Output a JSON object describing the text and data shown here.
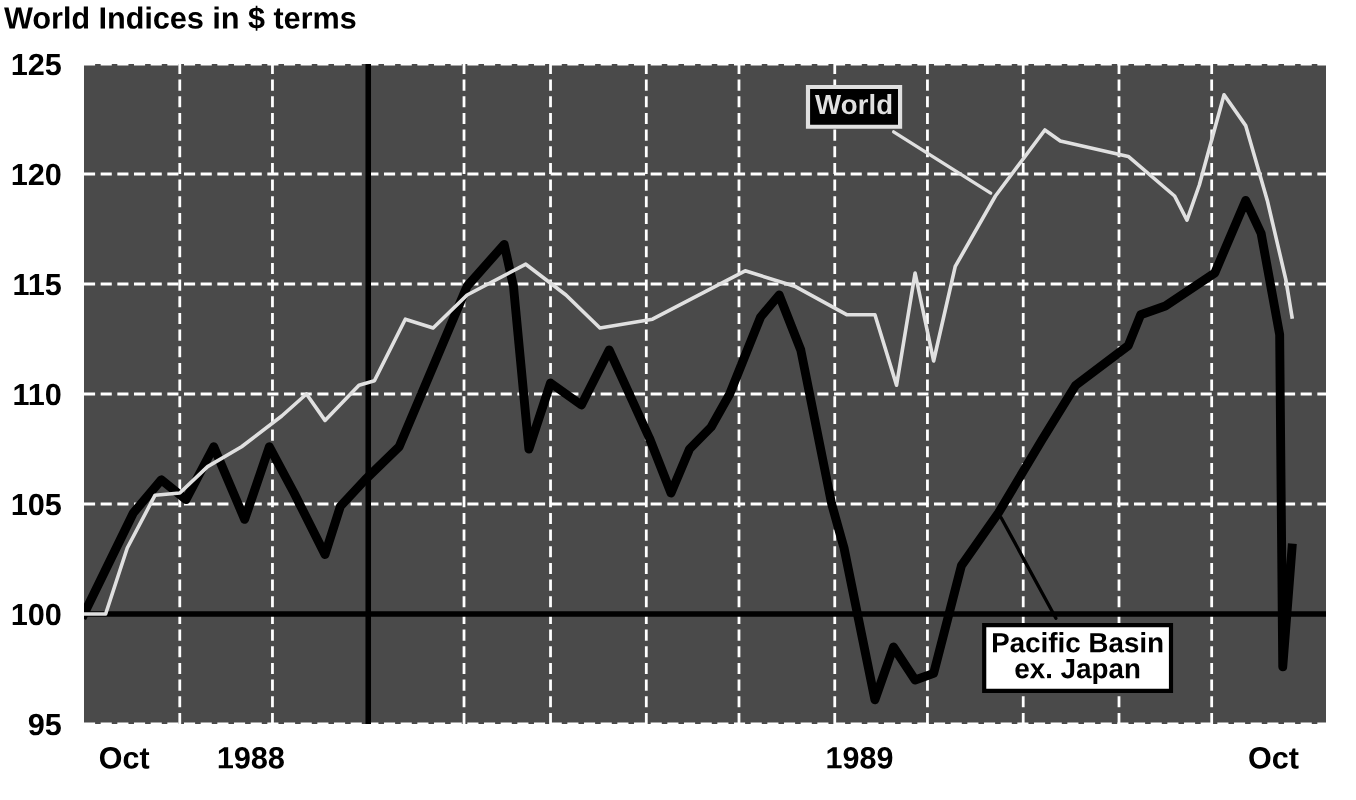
{
  "chart_data": {
    "type": "line",
    "title": "World Indices in $ terms",
    "xlim": [
      "1988-10-01",
      "1989-11-07"
    ],
    "ylim": [
      95,
      125
    ],
    "yticks": [
      95,
      100,
      105,
      110,
      115,
      120,
      125
    ],
    "xticks": [
      {
        "value": "1988-10-14",
        "label": "Oct"
      },
      {
        "value": "1988-11-24",
        "label": "1988"
      },
      {
        "value": "1989-06-09",
        "label": "1989"
      },
      {
        "value": "1989-10-21",
        "label": "Oct"
      },
      {
        "value": "1988-11-01",
        "label": null
      },
      {
        "value": "1988-12-01",
        "label": null
      },
      {
        "value": "1989-02-01",
        "label": null
      },
      {
        "value": "1989-03-01",
        "label": null
      },
      {
        "value": "1989-04-01",
        "label": null
      },
      {
        "value": "1989-05-01",
        "label": null
      },
      {
        "value": "1989-06-01",
        "label": null
      },
      {
        "value": "1989-07-01",
        "label": null
      },
      {
        "value": "1989-08-01",
        "label": null
      },
      {
        "value": "1989-09-01",
        "label": null
      },
      {
        "value": "1989-10-01",
        "label": null
      }
    ],
    "grid": true,
    "legend": false,
    "marker": "none",
    "line_style": "solid",
    "ref_lines": [
      {
        "axis": "x",
        "value": "1989-01-01",
        "label": null,
        "color": "#000000"
      },
      {
        "axis": "y",
        "value": 100,
        "label": null,
        "color": "#000000"
      }
    ],
    "series": [
      {
        "name": "World",
        "color": "#e0e0e0",
        "x": [
          "1988-10-01",
          "1988-10-08",
          "1988-10-15",
          "1988-10-24",
          "1988-11-01",
          "1988-11-10",
          "1988-11-21",
          "1988-12-04",
          "1988-12-12",
          "1988-12-18",
          "1988-12-29",
          "1989-01-03",
          "1989-01-13",
          "1989-01-22",
          "1989-02-02",
          "1989-02-21",
          "1989-03-06",
          "1989-03-17",
          "1989-04-03",
          "1989-05-03",
          "1989-05-19",
          "1989-06-05",
          "1989-06-14",
          "1989-06-21",
          "1989-06-27",
          "1989-07-03",
          "1989-07-10",
          "1989-07-23",
          "1989-08-08",
          "1989-08-13",
          "1989-09-04",
          "1989-09-19",
          "1989-09-23",
          "1989-09-27",
          "1989-10-05",
          "1989-10-12",
          "1989-10-19",
          "1989-10-25",
          "1989-10-27"
        ],
        "values": [
          100,
          100,
          103,
          105.4,
          105.5,
          106.7,
          107.6,
          109,
          110,
          108.8,
          110.4,
          110.6,
          113.4,
          113,
          114.5,
          115.9,
          114.5,
          113,
          113.4,
          115.6,
          114.9,
          113.6,
          113.6,
          110.4,
          115.5,
          111.5,
          115.8,
          119,
          122,
          121.5,
          120.8,
          119,
          117.9,
          119.5,
          123.6,
          122.2,
          118.8,
          115.2,
          113.5
        ]
      },
      {
        "name": "Pacific Basin\nex. Japan",
        "color": "#000000",
        "x": [
          "1988-10-01",
          "1988-10-17",
          "1988-10-26",
          "1988-11-03",
          "1988-11-12",
          "1988-11-22",
          "1988-11-30",
          "1988-12-08",
          "1988-12-18",
          "1988-12-23",
          "1988-12-31",
          "1989-01-11",
          "1989-02-02",
          "1989-02-14",
          "1989-02-17",
          "1989-02-22",
          "1989-03-01",
          "1989-03-11",
          "1989-03-20",
          "1989-04-02",
          "1989-04-09",
          "1989-04-15",
          "1989-04-22",
          "1989-04-28",
          "1989-05-08",
          "1989-05-14",
          "1989-05-21",
          "1989-05-31",
          "1989-06-04",
          "1989-06-14",
          "1989-06-20",
          "1989-06-27",
          "1989-07-03",
          "1989-07-12",
          "1989-07-24",
          "1989-08-07",
          "1989-08-18",
          "1989-09-04",
          "1989-09-08",
          "1989-09-16",
          "1989-10-02",
          "1989-10-12",
          "1989-10-17",
          "1989-10-23",
          "1989-10-24",
          "1989-10-27"
        ],
        "values": [
          100,
          104.6,
          106.1,
          105.2,
          107.6,
          104.3,
          107.6,
          105.5,
          102.7,
          104.9,
          106.1,
          107.6,
          114.9,
          116.8,
          114.9,
          107.5,
          110.5,
          109.5,
          112,
          108,
          105.5,
          107.5,
          108.5,
          110,
          113.5,
          114.5,
          112,
          105,
          103,
          96.1,
          98.5,
          97,
          97.3,
          102.2,
          104.6,
          107.9,
          110.4,
          112.2,
          113.6,
          114,
          115.5,
          118.8,
          117.3,
          112.7,
          97.6,
          103
        ]
      }
    ]
  }
}
